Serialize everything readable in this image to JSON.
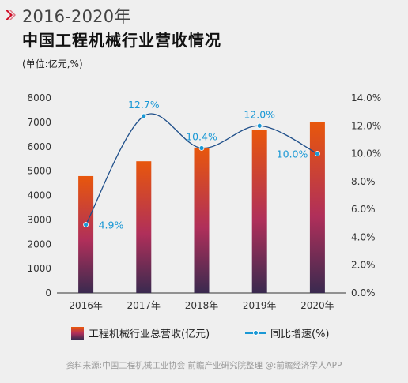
{
  "header": {
    "title_line1": "2016-2020年",
    "title_line2": "中国工程机械行业营收情况",
    "unit_note": "(单位:亿元,%)"
  },
  "colors": {
    "bar_top": "#e8570c",
    "bar_mid": "#b02f5a",
    "bar_bottom": "#3a2a4f",
    "line": "#1a98d5",
    "accent": "#d0102a"
  },
  "chart_data": {
    "type": "bar",
    "categories": [
      "2016年",
      "2017年",
      "2018年",
      "2019年",
      "2020年"
    ],
    "series": [
      {
        "name": "工程机械行业总营收(亿元)",
        "type": "bar",
        "axis": "left",
        "values": [
          4795,
          5403,
          5964,
          6681,
          6996
        ]
      },
      {
        "name": "同比增速(%)",
        "type": "line",
        "axis": "right",
        "values": [
          4.9,
          12.7,
          10.4,
          12.0,
          10.0
        ],
        "labels": [
          "4.9%",
          "12.7%",
          "10.4%",
          "12.0%",
          "10.0%"
        ]
      }
    ],
    "y_left": {
      "ylim": [
        0,
        8000
      ],
      "ticks": [
        "0",
        "1000",
        "2000",
        "3000",
        "4000",
        "5000",
        "6000",
        "7000",
        "8000"
      ]
    },
    "y_right": {
      "ylim": [
        0,
        14
      ],
      "ticks": [
        "0.0%",
        "2.0%",
        "4.0%",
        "6.0%",
        "8.0%",
        "10.0%",
        "12.0%",
        "14.0%"
      ]
    },
    "grid": false,
    "legend": "bottom"
  },
  "footer": {
    "source": "资料来源:中国工程机械工业协会 前瞻产业研究院整理  @:前瞻经济学人APP"
  }
}
